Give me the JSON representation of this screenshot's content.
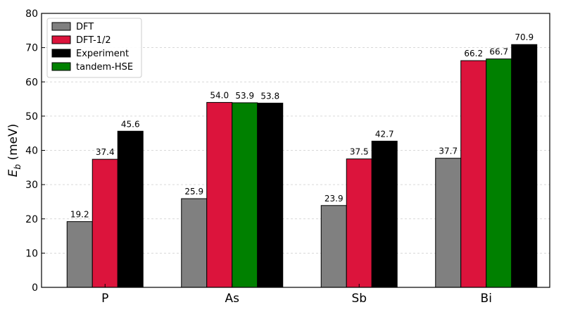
{
  "chart_data": {
    "type": "bar",
    "categories": [
      "P",
      "As",
      "Sb",
      "Bi"
    ],
    "series": [
      {
        "name": "DFT",
        "color": "#808080",
        "values": [
          19.2,
          25.9,
          23.9,
          37.7
        ]
      },
      {
        "name": "DFT-1/2",
        "color": "#dc143c",
        "values": [
          37.4,
          54.0,
          37.5,
          66.2
        ]
      },
      {
        "name": "Experiment",
        "color": "#000000",
        "values": [
          45.6,
          53.8,
          42.7,
          70.9
        ]
      },
      {
        "name": "tandem-HSE",
        "color": "#008000",
        "values": [
          null,
          53.9,
          null,
          66.7
        ]
      }
    ],
    "bar_order": [
      "DFT",
      "DFT-1/2",
      "tandem-HSE",
      "Experiment"
    ],
    "data_labels": {
      "DFT": [
        "19.2",
        "25.9",
        "23.9",
        "37.7"
      ],
      "DFT-1/2": [
        "37.4",
        "54.0",
        "37.5",
        "66.2"
      ],
      "Experiment": [
        "45.6",
        "53.8",
        "42.7",
        "70.9"
      ],
      "tandem-HSE": [
        null,
        "53.9",
        null,
        "66.7"
      ]
    },
    "ylabel_main": "E",
    "ylabel_sub": "b",
    "ylabel_unit": " (meV)",
    "xlabel": "",
    "ylim": [
      0,
      80
    ],
    "yticks": [
      "0",
      "10",
      "20",
      "30",
      "40",
      "50",
      "60",
      "70",
      "80"
    ],
    "grid": true,
    "legend_position": "top-left"
  }
}
